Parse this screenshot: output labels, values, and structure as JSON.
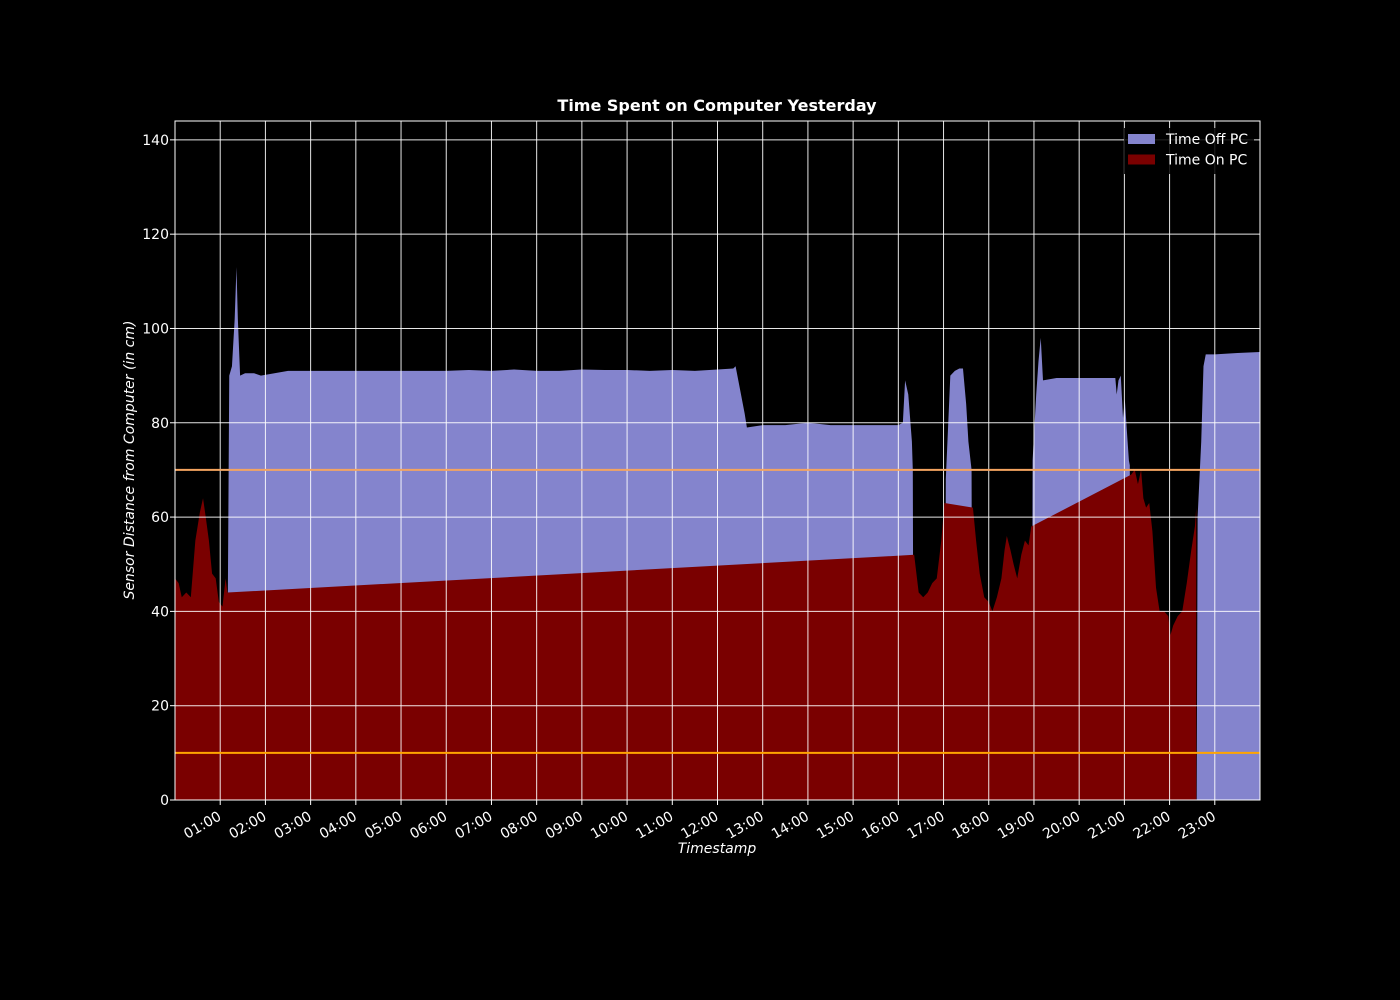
{
  "chart_data": {
    "type": "area",
    "title": "Time Spent on Computer Yesterday",
    "xlabel": "Timestamp",
    "ylabel": "Sensor Distance from Computer (in cm)",
    "x_unit": "hour of day",
    "xlim": [
      0.0,
      24.0
    ],
    "ylim": [
      0,
      144
    ],
    "yticks": [
      0,
      20,
      40,
      60,
      80,
      100,
      120,
      140
    ],
    "xticks": [
      {
        "x": 1,
        "label": "01:00"
      },
      {
        "x": 2,
        "label": "02:00"
      },
      {
        "x": 3,
        "label": "03:00"
      },
      {
        "x": 4,
        "label": "04:00"
      },
      {
        "x": 5,
        "label": "05:00"
      },
      {
        "x": 6,
        "label": "06:00"
      },
      {
        "x": 7,
        "label": "07:00"
      },
      {
        "x": 8,
        "label": "08:00"
      },
      {
        "x": 9,
        "label": "09:00"
      },
      {
        "x": 10,
        "label": "10:00"
      },
      {
        "x": 11,
        "label": "11:00"
      },
      {
        "x": 12,
        "label": "12:00"
      },
      {
        "x": 13,
        "label": "13:00"
      },
      {
        "x": 14,
        "label": "14:00"
      },
      {
        "x": 15,
        "label": "15:00"
      },
      {
        "x": 16,
        "label": "16:00"
      },
      {
        "x": 17,
        "label": "17:00"
      },
      {
        "x": 18,
        "label": "18:00"
      },
      {
        "x": 19,
        "label": "19:00"
      },
      {
        "x": 20,
        "label": "20:00"
      },
      {
        "x": 21,
        "label": "21:00"
      },
      {
        "x": 22,
        "label": "22:00"
      },
      {
        "x": 23,
        "label": "23:00"
      }
    ],
    "grid": true,
    "legend_position": "top-right",
    "threshold_lines": [
      {
        "y": 70,
        "color": "#f4a460"
      },
      {
        "y": 10,
        "color": "#ffa500"
      }
    ],
    "series": [
      {
        "name": "Time Off PC",
        "color": "#8484cd",
        "points": [
          [
            1.17,
            45
          ],
          [
            1.2,
            90
          ],
          [
            1.26,
            92
          ],
          [
            1.32,
            102
          ],
          [
            1.36,
            113
          ],
          [
            1.39,
            102
          ],
          [
            1.44,
            90
          ],
          [
            1.55,
            90.5
          ],
          [
            1.75,
            90.5
          ],
          [
            1.9,
            90
          ],
          [
            2.2,
            90.5
          ],
          [
            2.5,
            91
          ],
          [
            3,
            91
          ],
          [
            3.5,
            91
          ],
          [
            4,
            91
          ],
          [
            4.5,
            91
          ],
          [
            5,
            91
          ],
          [
            5.5,
            91
          ],
          [
            6,
            91
          ],
          [
            6.5,
            91.2
          ],
          [
            7,
            91
          ],
          [
            7.5,
            91.3
          ],
          [
            8,
            91
          ],
          [
            8.5,
            91
          ],
          [
            9,
            91.3
          ],
          [
            9.5,
            91.2
          ],
          [
            10,
            91.2
          ],
          [
            10.5,
            91
          ],
          [
            11,
            91.2
          ],
          [
            11.5,
            91
          ],
          [
            12,
            91.3
          ],
          [
            12.35,
            91.5
          ],
          [
            12.4,
            92
          ],
          [
            12.5,
            87
          ],
          [
            12.6,
            82
          ],
          [
            12.65,
            79
          ],
          [
            13,
            79.5
          ],
          [
            13.5,
            79.5
          ],
          [
            14,
            80
          ],
          [
            14.5,
            79.5
          ],
          [
            15,
            79.5
          ],
          [
            15.5,
            79.5
          ],
          [
            16,
            79.5
          ],
          [
            16.1,
            80
          ],
          [
            16.15,
            89
          ],
          [
            16.22,
            86
          ],
          [
            16.3,
            76
          ],
          [
            16.32,
            70
          ],
          [
            16.34,
            0
          ],
          [
            17.03,
            0
          ],
          [
            17.05,
            68
          ],
          [
            17.1,
            79
          ],
          [
            17.15,
            90
          ],
          [
            17.25,
            91
          ],
          [
            17.35,
            91.5
          ],
          [
            17.43,
            91.5
          ],
          [
            17.5,
            84
          ],
          [
            17.55,
            76
          ],
          [
            17.62,
            70
          ],
          [
            17.64,
            0
          ],
          [
            18.95,
            0
          ],
          [
            18.97,
            72
          ],
          [
            19.05,
            86
          ],
          [
            19.1,
            93
          ],
          [
            19.15,
            98
          ],
          [
            19.2,
            89
          ],
          [
            19.5,
            89.5
          ],
          [
            20,
            89.5
          ],
          [
            20.5,
            89.5
          ],
          [
            20.8,
            89.5
          ],
          [
            20.83,
            86
          ],
          [
            20.87,
            89
          ],
          [
            20.92,
            90
          ],
          [
            20.97,
            81
          ],
          [
            21.01,
            85
          ],
          [
            21.05,
            79
          ],
          [
            21.1,
            72
          ],
          [
            21.12,
            71
          ],
          [
            21.14,
            0
          ],
          [
            21.18,
            0
          ],
          [
            21.2,
            71
          ],
          [
            21.22,
            0
          ],
          [
            22.6,
            0
          ],
          [
            22.62,
            60
          ],
          [
            22.7,
            76
          ],
          [
            22.75,
            92
          ],
          [
            22.8,
            94.5
          ],
          [
            23,
            94.5
          ],
          [
            23.5,
            94.8
          ],
          [
            24,
            95
          ]
        ]
      },
      {
        "name": "Time On PC",
        "color": "#7a0000",
        "points": [
          [
            0,
            47
          ],
          [
            0.08,
            46
          ],
          [
            0.15,
            43
          ],
          [
            0.25,
            44
          ],
          [
            0.35,
            43
          ],
          [
            0.45,
            55
          ],
          [
            0.55,
            61
          ],
          [
            0.62,
            64
          ],
          [
            0.68,
            60
          ],
          [
            0.75,
            55
          ],
          [
            0.82,
            48
          ],
          [
            0.9,
            47
          ],
          [
            0.97,
            42
          ],
          [
            1.05,
            41
          ],
          [
            1.12,
            47
          ],
          [
            1.16,
            44
          ],
          [
            16.35,
            52
          ],
          [
            16.45,
            44
          ],
          [
            16.55,
            43
          ],
          [
            16.65,
            44
          ],
          [
            16.75,
            46
          ],
          [
            16.85,
            47
          ],
          [
            16.95,
            55
          ],
          [
            17.02,
            63
          ],
          [
            17.65,
            62
          ],
          [
            17.72,
            55
          ],
          [
            17.8,
            48
          ],
          [
            17.9,
            43
          ],
          [
            18.0,
            42
          ],
          [
            18.08,
            40
          ],
          [
            18.18,
            43
          ],
          [
            18.28,
            47
          ],
          [
            18.35,
            53
          ],
          [
            18.4,
            56
          ],
          [
            18.48,
            53
          ],
          [
            18.55,
            50
          ],
          [
            18.63,
            47
          ],
          [
            18.72,
            52
          ],
          [
            18.8,
            55
          ],
          [
            18.88,
            54
          ],
          [
            18.94,
            58
          ],
          [
            21.15,
            69
          ],
          [
            21.23,
            70
          ],
          [
            21.3,
            67
          ],
          [
            21.37,
            70
          ],
          [
            21.42,
            64
          ],
          [
            21.48,
            62
          ],
          [
            21.55,
            63
          ],
          [
            21.62,
            57
          ],
          [
            21.7,
            45
          ],
          [
            21.78,
            40
          ],
          [
            21.88,
            40
          ],
          [
            21.97,
            39
          ],
          [
            22.02,
            35
          ],
          [
            22.08,
            37
          ],
          [
            22.18,
            39
          ],
          [
            22.28,
            40
          ],
          [
            22.38,
            46
          ],
          [
            22.48,
            53
          ],
          [
            22.56,
            58
          ],
          [
            22.59,
            62
          ]
        ]
      }
    ]
  }
}
